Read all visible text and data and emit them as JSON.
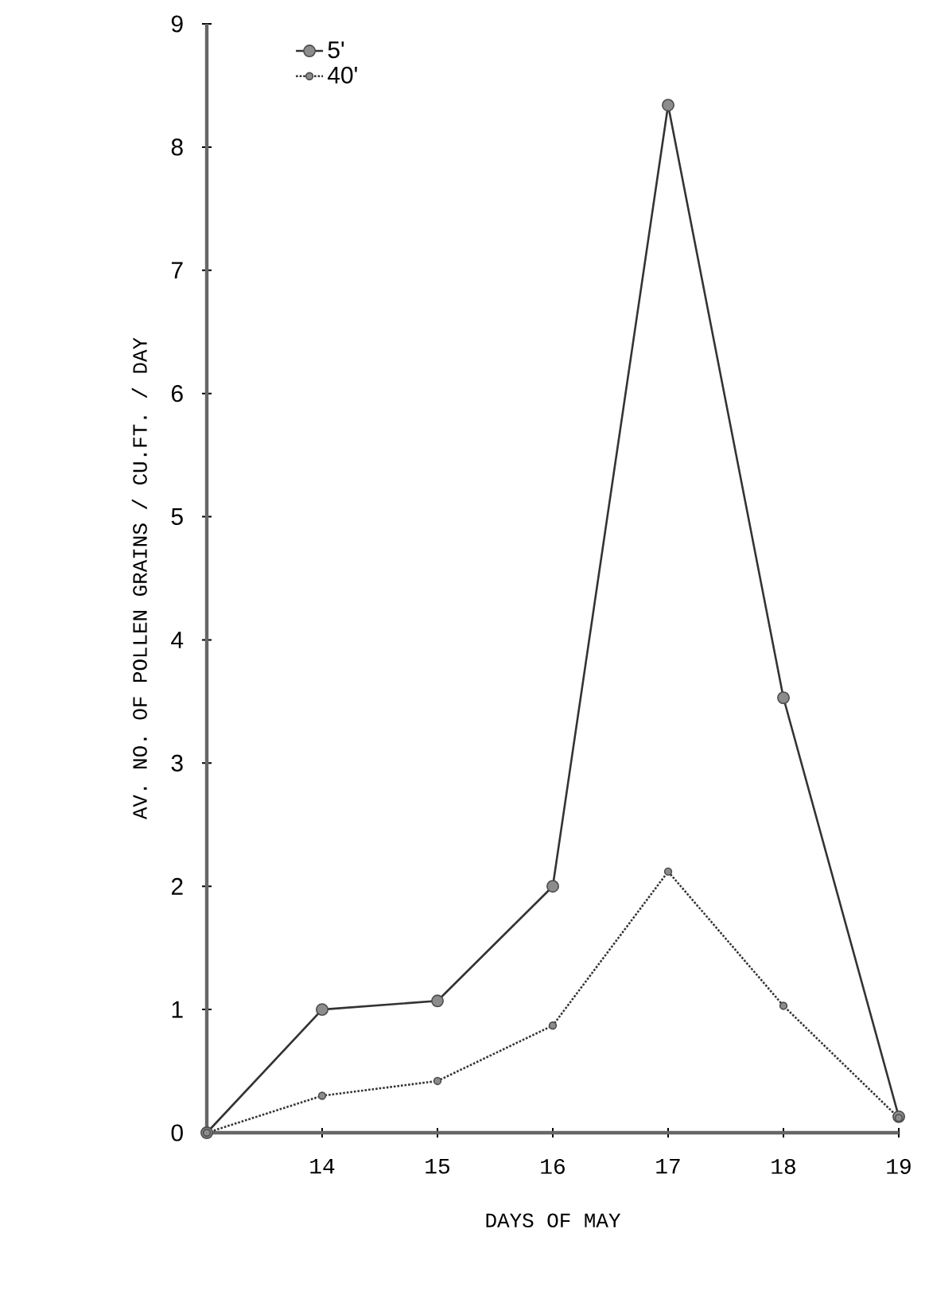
{
  "chart_data": {
    "type": "line",
    "xlabel": "DAYS OF MAY",
    "ylabel": "AV. NO. OF POLLEN GRAINS / CU.FT. / DAY",
    "x": [
      13,
      14,
      15,
      16,
      17,
      18,
      19
    ],
    "series": [
      {
        "name": "5'",
        "color": "#333333",
        "line_style": "solid",
        "values": [
          0,
          1.0,
          1.07,
          2.0,
          8.34,
          3.53,
          0.13
        ]
      },
      {
        "name": "40'",
        "color": "#333333",
        "line_style": "dotted",
        "values": [
          0,
          0.3,
          0.42,
          0.87,
          2.12,
          1.03,
          0.12
        ]
      }
    ],
    "xlim": [
      13,
      19
    ],
    "ylim": [
      0,
      9
    ],
    "xticks": [
      14,
      15,
      16,
      17,
      18,
      19
    ],
    "yticks": [
      0,
      1,
      2,
      3,
      4,
      5,
      6,
      7,
      8,
      9
    ],
    "marker": "circle",
    "legend": "top left"
  }
}
